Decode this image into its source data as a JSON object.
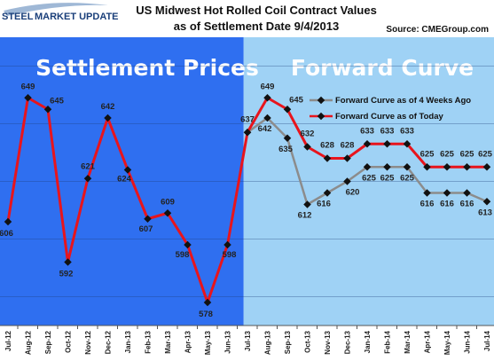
{
  "logo": {
    "word1": "STEEL",
    "word2": "MARKET UPDATE"
  },
  "source": "Source: CMEGroup.com",
  "colors": {
    "settlement_bg": "#2f6ff0",
    "forward_bg": "#9fd2f5",
    "today_line": "#e8141c",
    "prior_line": "#8c8c8c",
    "marker": "#111111"
  },
  "chart_data": {
    "type": "line",
    "title": "US Midwest Hot Rolled Coil Contract Values",
    "subtitle": "as of Settlement Date 9/4/2013",
    "sections": [
      "Settlement Prices",
      "Forward Curve"
    ],
    "settlement_count": 13,
    "x": [
      "Jul-12",
      "Aug-12",
      "Sep-12",
      "Oct-12",
      "Nov-12",
      "Dec-12",
      "Jan-13",
      "Feb-13",
      "Mar-13",
      "Apr-13",
      "May-13",
      "Jun-13",
      "Jul-13",
      "Aug-13",
      "Sep-13",
      "Oct-13",
      "Nov-13",
      "Dec-13",
      "Jan-14",
      "Feb-14",
      "Mar-14",
      "Apr-14",
      "May-14",
      "Jun-14",
      "Jul-14"
    ],
    "xticks": [
      "Jul-12",
      "Aug-12",
      "Sep-12",
      "Oct-12",
      "Nov-12",
      "Dec-12",
      "Jan-13",
      "Feb-13",
      "Mar-13",
      "Apr-13",
      "May-13",
      "Jun-13",
      "Jul-13",
      "Aug-13",
      "Sep-13",
      "Oct-13",
      "Nov-13",
      "Dec-13",
      "Jan-14",
      "Feb-14",
      "Mar-14",
      "Apr-14",
      "May-14",
      "Jun-14",
      "Jul-14"
    ],
    "series": [
      {
        "name": "Forward Curve as of 4 Weeks Ago",
        "x": [
          "Jul-13",
          "Aug-13",
          "Sep-13",
          "Oct-13",
          "Nov-13",
          "Dec-13",
          "Jan-14",
          "Feb-14",
          "Mar-14",
          "Apr-14",
          "May-14",
          "Jun-14",
          "Jul-14"
        ],
        "values": [
          637,
          642,
          635,
          612,
          616,
          620,
          625,
          625,
          625,
          616,
          616,
          616,
          613
        ],
        "labels": [
          "",
          "642",
          "635",
          "612",
          "616",
          "620",
          "625",
          "625",
          "625",
          "616",
          "616",
          "616",
          "613"
        ]
      },
      {
        "name": "Forward Curve as of Today",
        "x": [
          "Jul-12",
          "Aug-12",
          "Sep-12",
          "Oct-12",
          "Nov-12",
          "Dec-12",
          "Jan-13",
          "Feb-13",
          "Mar-13",
          "Apr-13",
          "May-13",
          "Jun-13",
          "Jul-13",
          "Aug-13",
          "Sep-13",
          "Oct-13",
          "Nov-13",
          "Dec-13",
          "Jan-14",
          "Feb-14",
          "Mar-14",
          "Apr-14",
          "May-14",
          "Jun-14",
          "Jul-14"
        ],
        "values": [
          606,
          649,
          645,
          592,
          621,
          642,
          624,
          607,
          609,
          598,
          578,
          598,
          637,
          649,
          645,
          632,
          628,
          628,
          633,
          633,
          633,
          625,
          625,
          625,
          625
        ],
        "labels": [
          "606",
          "649",
          "645",
          "592",
          "621",
          "642",
          "624",
          "607",
          "609",
          "598",
          "578",
          "598",
          "637",
          "649",
          "645",
          "632",
          "628",
          "628",
          "633",
          "633",
          "633",
          "625",
          "625",
          "625",
          "625"
        ]
      }
    ],
    "ylim": [
      570,
      670
    ],
    "grid": true,
    "legend_position": "top-right"
  }
}
